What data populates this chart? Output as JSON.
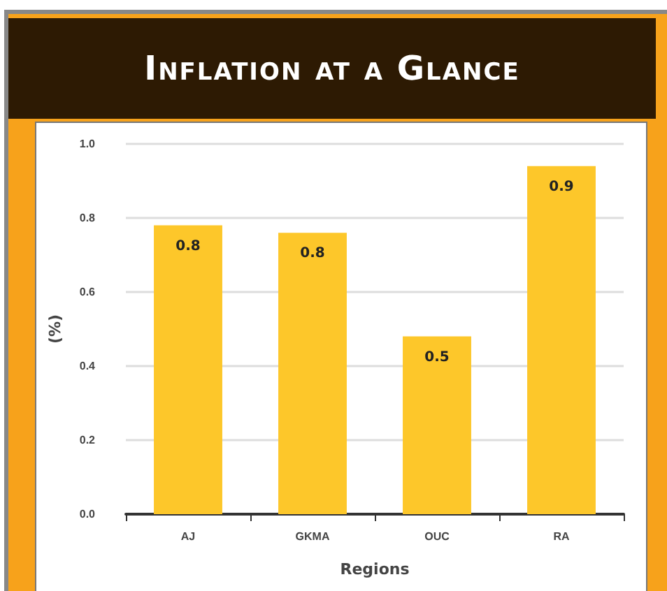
{
  "chart_data": {
    "type": "bar",
    "title": "Inflation at a Glance",
    "xlabel": "Regions",
    "ylabel": "(%)",
    "categories": [
      "AJ",
      "GKMA",
      "OUC",
      "RA"
    ],
    "values": [
      0.78,
      0.76,
      0.48,
      0.94
    ],
    "value_labels": [
      "0.8",
      "0.8",
      "0.5",
      "0.9"
    ],
    "color": "#fdc72a",
    "ylim": [
      0,
      1
    ],
    "yticks": [
      {
        "value": 0,
        "label": "0.0"
      },
      {
        "value": 0.2,
        "label": "0.2"
      },
      {
        "value": 0.4,
        "label": "0.4"
      },
      {
        "value": 0.6,
        "label": "0.6"
      },
      {
        "value": 0.8,
        "label": "0.8"
      },
      {
        "value": 1,
        "label": "1.0"
      }
    ],
    "grid": "y"
  }
}
